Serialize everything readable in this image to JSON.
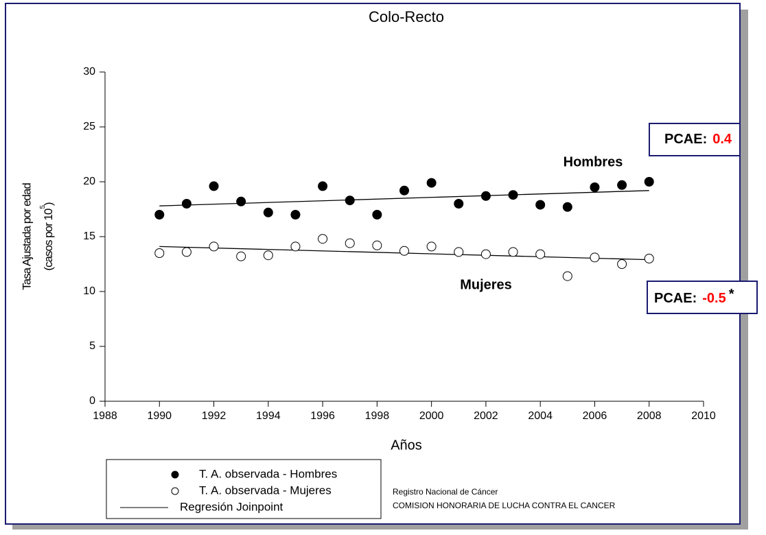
{
  "chart_data": {
    "type": "scatter",
    "title": "Colo-Recto",
    "x_label": "Años",
    "y_label": "Tasa Ajustada por edad",
    "y_label_2": "(casos por 10",
    "y_label_exp": "5",
    "y_label_close": ")",
    "x": [
      1990,
      1991,
      1992,
      1993,
      1994,
      1995,
      1996,
      1997,
      1998,
      1999,
      2000,
      2001,
      2002,
      2003,
      2004,
      2005,
      2006,
      2007,
      2008
    ],
    "series": [
      {
        "name": "T. A. observada - Hombres",
        "color": "#000000",
        "marker": "filled",
        "values": [
          17.0,
          18.0,
          19.6,
          18.2,
          17.2,
          17.0,
          19.6,
          18.3,
          17.0,
          19.2,
          19.9,
          18.0,
          18.7,
          18.8,
          17.9,
          17.7,
          19.5,
          19.7,
          20.0
        ]
      },
      {
        "name": "T. A. observada - Mujeres",
        "color": "#000000",
        "marker": "open",
        "values": [
          13.5,
          13.6,
          14.1,
          13.2,
          13.3,
          14.1,
          14.8,
          14.4,
          14.2,
          13.7,
          14.1,
          13.6,
          13.4,
          13.6,
          13.4,
          11.4,
          13.1,
          12.5,
          13.0
        ]
      }
    ],
    "regression": {
      "name": "Regresión Joinpoint",
      "color": "#000000",
      "lines": [
        {
          "x": [
            1990,
            2008
          ],
          "values": [
            17.8,
            19.2
          ]
        },
        {
          "x": [
            1990,
            2008
          ],
          "values": [
            14.1,
            12.9
          ]
        }
      ]
    },
    "xlim": [
      1988,
      2010
    ],
    "xticks": [
      1988,
      1990,
      1992,
      1994,
      1996,
      1998,
      2000,
      2002,
      2004,
      2006,
      2008,
      2010
    ],
    "ylim": [
      0,
      30
    ],
    "yticks": [
      0,
      5,
      10,
      15,
      20,
      25,
      30
    ],
    "annotations": {
      "hombres": "Hombres",
      "mujeres": "Mujeres",
      "pcae_label_1": "PCAE:",
      "pcae_value_1": 0.4,
      "pcae_label_2": "PCAE:",
      "pcae_value_2": -0.5,
      "pcae_mark_2": "*",
      "value_color": "#ff0000"
    },
    "footer": [
      "Registro Nacional de Cáncer",
      "COMISION HONORARIA DE LUCHA CONTRA EL CANCER"
    ]
  }
}
